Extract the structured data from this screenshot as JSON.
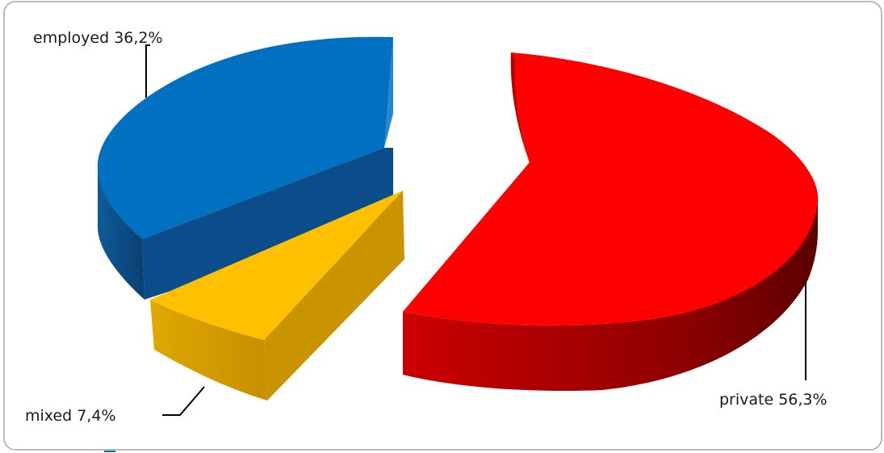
{
  "chart_data": {
    "type": "pie",
    "three_d": true,
    "exploded": true,
    "slices": [
      {
        "category": "employed",
        "value_label": "36,2%",
        "value": 36.2,
        "color": "#0070C0"
      },
      {
        "category": "mixed",
        "value_label": "7,4%",
        "value": 7.4,
        "color": "#FFC000"
      },
      {
        "category": "private",
        "value_label": "56,3%",
        "value": 56.3,
        "color": "#FF0000"
      }
    ],
    "legend": "none",
    "data_labels": "category and percentage with leader lines"
  }
}
